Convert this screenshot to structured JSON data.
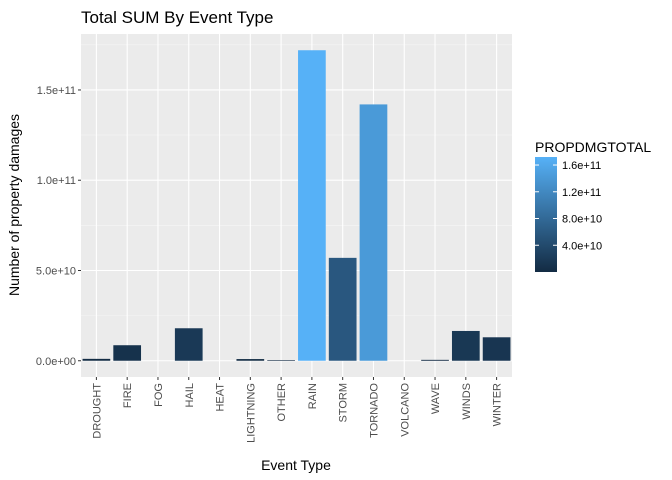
{
  "chart_data": {
    "type": "bar",
    "title": "Total SUM By Event Type",
    "xlabel": "Event Type",
    "ylabel": "Number of property damages",
    "categories": [
      "DROUGHT",
      "FIRE",
      "FOG",
      "HAIL",
      "HEAT",
      "LIGHTNING",
      "OTHER",
      "RAIN",
      "STORM",
      "TORNADO",
      "VOLCANO",
      "WAVE",
      "WINDS",
      "WINTER"
    ],
    "values": [
      1050000000.0,
      8600000000.0,
      0,
      18000000000.0,
      0,
      930000000.0,
      350000000.0,
      172000000000.0,
      57000000000.0,
      142000000000.0,
      0,
      500000000.0,
      16500000000.0,
      13000000000.0
    ],
    "ylim": [
      -9000000000.0,
      181000000000.0
    ],
    "y_ticks": [
      {
        "value": 0,
        "label": "0.0e+00"
      },
      {
        "value": 50000000000.0,
        "label": "5.0e+10"
      },
      {
        "value": 100000000000.0,
        "label": "1.0e+11"
      },
      {
        "value": 150000000000.0,
        "label": "1.5e+11"
      }
    ],
    "grid": true,
    "legend": {
      "title": "PROPDMGTOTAL",
      "placement": "right",
      "range": [
        0,
        172000000000.0
      ],
      "low_color": "#132B43",
      "high_color": "#56B1F7",
      "ticks": [
        {
          "value": 40000000000.0,
          "label": "4.0e+10"
        },
        {
          "value": 80000000000.0,
          "label": "8.0e+10"
        },
        {
          "value": 120000000000.0,
          "label": "1.2e+11"
        },
        {
          "value": 160000000000.0,
          "label": "1.6e+11"
        }
      ]
    }
  }
}
